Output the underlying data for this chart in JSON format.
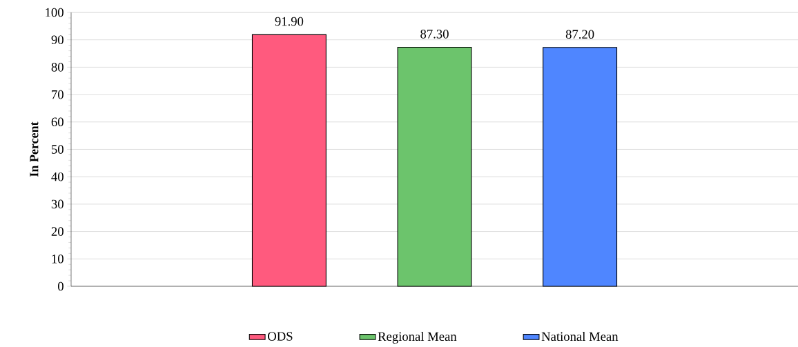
{
  "chart_data": {
    "type": "bar",
    "ylabel": "In Percent",
    "categories": [
      null
    ],
    "series": [
      {
        "name": "ODS",
        "color": "#ff5a7e",
        "values": [
          91.9
        ],
        "value_labels": [
          "91.90"
        ]
      },
      {
        "name": "Regional Mean",
        "color": "#6cc46c",
        "values": [
          87.3
        ],
        "value_labels": [
          "87.30"
        ]
      },
      {
        "name": "National Mean",
        "color": "#4f86ff",
        "values": [
          87.2
        ],
        "value_labels": [
          "87.20"
        ]
      }
    ],
    "ylim": [
      0,
      100
    ],
    "yticks": [
      0,
      10,
      20,
      30,
      40,
      50,
      60,
      70,
      80,
      90,
      100
    ],
    "grid": "y",
    "legend": "bottom"
  }
}
